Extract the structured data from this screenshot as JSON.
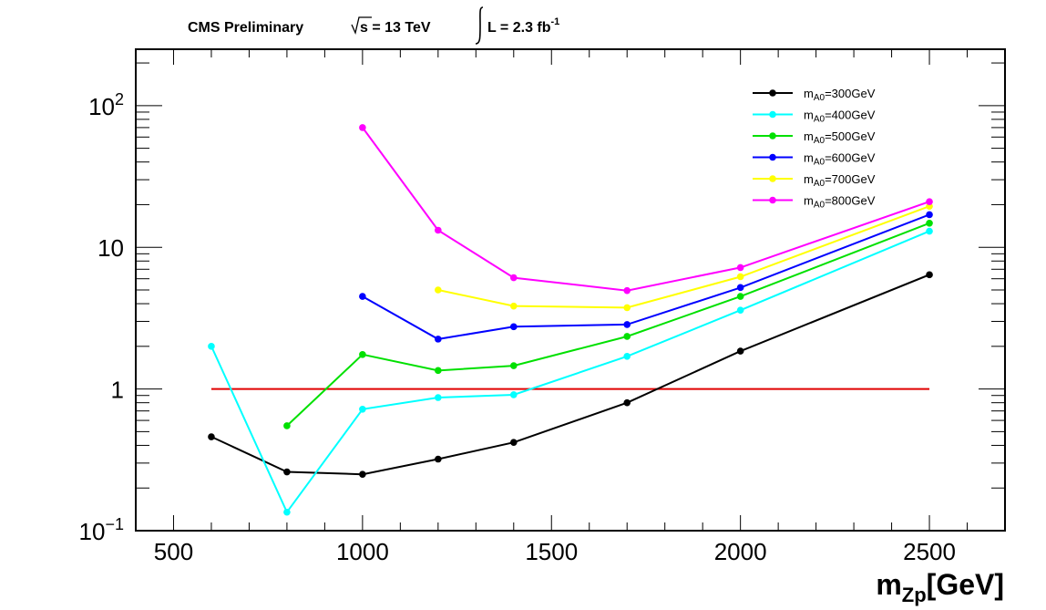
{
  "header": {
    "experiment": "CMS Preliminary",
    "energy_sqrt": "s",
    "energy_rest": " = 13 TeV",
    "lumi_text": "L = 2.3 fb",
    "lumi_exp": "-1"
  },
  "chart_data": {
    "type": "line",
    "x_axis": {
      "label_main": "m",
      "label_sub": "Zp",
      "label_unit": "[GeV]",
      "range": [
        400,
        2700
      ],
      "ticks": [
        500,
        1000,
        1500,
        2000,
        2500
      ],
      "tick_labels": [
        "500",
        "1000",
        "1500",
        "2000",
        "2500"
      ]
    },
    "y_axis": {
      "scale": "log",
      "range": [
        0.1,
        250
      ],
      "tick_labels": {
        "0.1": {
          "base": "10",
          "exp": "−1"
        },
        "1": {
          "base": "1",
          "exp": ""
        },
        "10": {
          "base": "10",
          "exp": ""
        },
        "100": {
          "base": "10",
          "exp": "2"
        }
      }
    },
    "reference_line": {
      "y": 1,
      "x_range": [
        600,
        2500
      ],
      "color": "#e00000"
    },
    "legend_position": "top-right",
    "series": [
      {
        "name_main": "m",
        "name_sub": "A0",
        "name_rest": "=300GeV",
        "color": "#000000",
        "x": [
          600,
          800,
          1000,
          1200,
          1400,
          1700,
          2000,
          2500
        ],
        "y": [
          0.46,
          0.26,
          0.25,
          0.32,
          0.42,
          0.8,
          1.85,
          6.4
        ]
      },
      {
        "name_main": "m",
        "name_sub": "A0",
        "name_rest": "=400GeV",
        "color": "#00ffff",
        "x": [
          600,
          800,
          1000,
          1200,
          1400,
          1700,
          2000,
          2500
        ],
        "y": [
          2.0,
          0.135,
          0.72,
          0.87,
          0.91,
          1.7,
          3.6,
          13.0
        ]
      },
      {
        "name_main": "m",
        "name_sub": "A0",
        "name_rest": "=500GeV",
        "color": "#00e000",
        "x": [
          800,
          1000,
          1200,
          1400,
          1700,
          2000,
          2500
        ],
        "y": [
          0.55,
          1.75,
          1.35,
          1.46,
          2.35,
          4.5,
          14.8
        ]
      },
      {
        "name_main": "m",
        "name_sub": "A0",
        "name_rest": "=600GeV",
        "color": "#0000ff",
        "x": [
          1000,
          1200,
          1400,
          1700,
          2000,
          2500
        ],
        "y": [
          4.5,
          2.25,
          2.75,
          2.85,
          5.2,
          17.0
        ]
      },
      {
        "name_main": "m",
        "name_sub": "A0",
        "name_rest": "=700GeV",
        "color": "#ffff00",
        "x": [
          1200,
          1400,
          1700,
          2000,
          2500
        ],
        "y": [
          5.0,
          3.85,
          3.75,
          6.2,
          19.5
        ]
      },
      {
        "name_main": "m",
        "name_sub": "A0",
        "name_rest": "=800GeV",
        "color": "#ff00ff",
        "x": [
          1000,
          1200,
          1400,
          1700,
          2000,
          2500
        ],
        "y": [
          70,
          13.2,
          6.1,
          4.95,
          7.2,
          21.0
        ]
      }
    ]
  }
}
